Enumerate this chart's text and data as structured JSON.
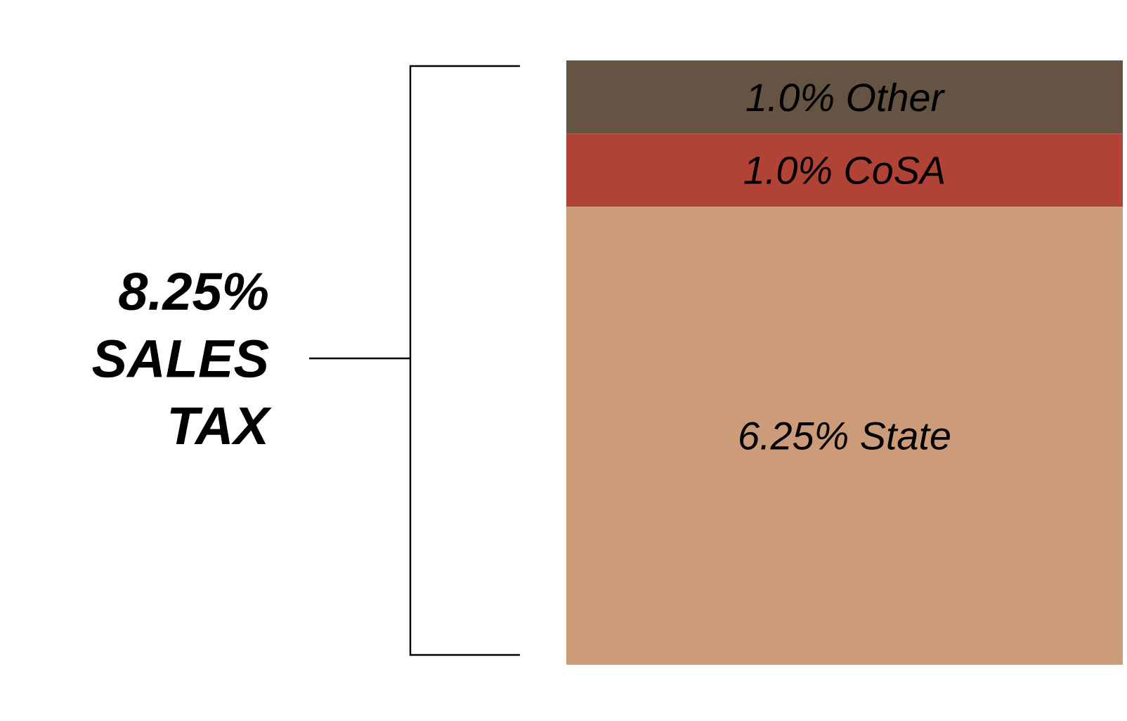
{
  "chart_data": {
    "type": "bar",
    "stacked": true,
    "title": "8.25% SALES TAX",
    "categories": [
      null
    ],
    "series": [
      {
        "name": "State",
        "color": "#cc9b7a",
        "values": [
          6.25
        ],
        "value_labels": [
          "6.25%"
        ]
      },
      {
        "name": "CoSA",
        "color": "#b04236",
        "values": [
          1.0
        ],
        "value_labels": [
          "1.0%"
        ]
      },
      {
        "name": "Other",
        "color": "#655443",
        "values": [
          1.0
        ],
        "value_labels": [
          "1.0%"
        ]
      }
    ]
  }
}
